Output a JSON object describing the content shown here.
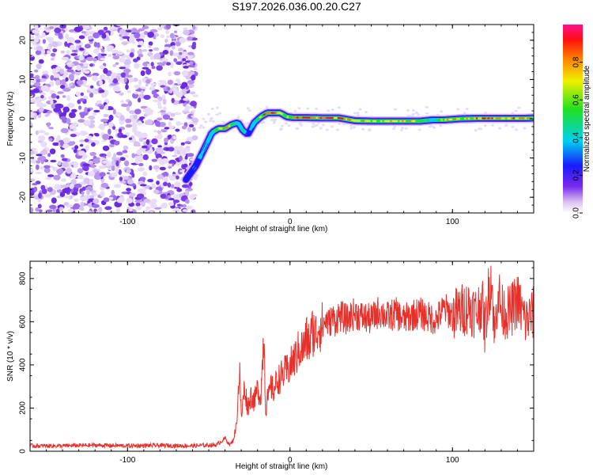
{
  "title": "S197.2026.036.00.20.C27",
  "chart_data": [
    {
      "type": "heatmap",
      "xlabel": "Height of straight line (km)",
      "ylabel": "Frequency (Hz)",
      "xlim": [
        -160,
        150
      ],
      "ylim": [
        -24,
        24
      ],
      "xticks": [
        -100,
        0,
        100
      ],
      "xtick_labels": [
        "-100",
        "0",
        "100"
      ],
      "yticks": [
        -20,
        -10,
        0,
        10,
        20
      ],
      "ytick_labels": [
        "-20",
        "-10",
        "0",
        "10",
        "20"
      ],
      "colorbar": {
        "label": "Normalized spectral amplitude",
        "range": [
          0,
          1
        ],
        "ticks": [
          0.0,
          0.2,
          0.4,
          0.6,
          0.8
        ],
        "tick_labels": [
          "0.0",
          "0.2",
          "0.4",
          "0.6",
          "0.8"
        ]
      },
      "noise_region_x": [
        -160,
        -62
      ],
      "ridge": {
        "x": [
          -64,
          -58,
          -52,
          -48,
          -44,
          -40,
          -36,
          -32,
          -29,
          -26,
          -22,
          -18,
          -14,
          -10,
          -6,
          -2,
          2,
          10,
          20,
          30,
          40,
          50,
          60,
          70,
          80,
          88,
          95,
          105,
          115,
          125,
          135,
          145,
          150
        ],
        "freq": [
          -15.5,
          -12,
          -7,
          -3.5,
          -2.5,
          -2.5,
          -1.5,
          -1,
          -3,
          -4,
          -1,
          0.5,
          1.5,
          1.5,
          1.5,
          0.5,
          0.3,
          0.3,
          0.2,
          0.2,
          -0.5,
          -0.6,
          -0.6,
          -0.6,
          -0.6,
          -0.3,
          -0.3,
          0,
          0.1,
          0.1,
          0.1,
          0.1,
          0.2
        ],
        "amplitude": [
          0.3,
          0.35,
          0.4,
          0.55,
          0.75,
          0.8,
          0.6,
          0.45,
          0.5,
          0.3,
          0.45,
          0.7,
          0.95,
          0.9,
          0.7,
          0.75,
          0.8,
          0.95,
          0.9,
          0.85,
          0.85,
          0.7,
          0.8,
          0.75,
          0.7,
          0.5,
          0.8,
          0.7,
          0.85,
          0.9,
          0.8,
          0.85,
          0.8
        ]
      }
    },
    {
      "type": "line",
      "xlabel": "Height of straight line (km)",
      "ylabel": "SNR (10 * v/v)",
      "xlim": [
        -160,
        150
      ],
      "ylim": [
        0,
        880
      ],
      "xticks": [
        -100,
        0,
        100
      ],
      "xtick_labels": [
        "-100",
        "0",
        "100"
      ],
      "yticks": [
        0,
        200,
        400,
        600,
        800
      ],
      "ytick_labels": [
        "0",
        "200",
        "400",
        "600",
        "800"
      ],
      "color": "#e8302a",
      "series": [
        {
          "name": "SNR",
          "x": [
            -160,
            -140,
            -120,
            -100,
            -80,
            -60,
            -45,
            -40,
            -37,
            -35,
            -33,
            -31,
            -30,
            -28,
            -26,
            -24,
            -22,
            -20,
            -18,
            -16,
            -15,
            -14,
            -13,
            -12,
            -10,
            -8,
            -6,
            -4,
            -2,
            0,
            2,
            4,
            6,
            8,
            10,
            12,
            14,
            16,
            18,
            20,
            22,
            24,
            26,
            28,
            30,
            35,
            40,
            45,
            50,
            55,
            60,
            65,
            70,
            75,
            80,
            85,
            90,
            95,
            100,
            105,
            110,
            115,
            118,
            120,
            122,
            124,
            126,
            128,
            130,
            135,
            140,
            145,
            150
          ],
          "y": [
            25,
            25,
            28,
            25,
            27,
            25,
            30,
            60,
            30,
            50,
            120,
            380,
            150,
            300,
            200,
            260,
            230,
            290,
            250,
            560,
            180,
            240,
            250,
            300,
            280,
            330,
            340,
            360,
            370,
            390,
            420,
            440,
            480,
            470,
            520,
            500,
            560,
            540,
            590,
            570,
            610,
            590,
            620,
            600,
            630,
            610,
            640,
            620,
            610,
            650,
            620,
            640,
            610,
            630,
            640,
            620,
            610,
            660,
            630,
            650,
            670,
            640,
            700,
            560,
            720,
            820,
            520,
            760,
            650,
            640,
            700,
            600,
            640
          ]
        }
      ]
    }
  ]
}
